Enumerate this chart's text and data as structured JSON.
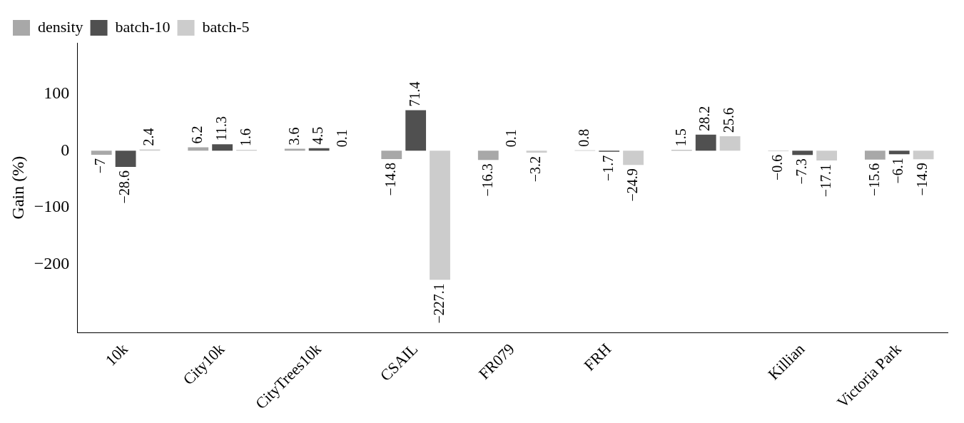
{
  "chart_data": {
    "type": "bar",
    "ylabel": "Gain (%)",
    "categories": [
      "10k",
      "City10k",
      "CityTrees10k",
      "CSAIL",
      "FR079",
      "FRH",
      null,
      "Killian",
      "Victoria Park"
    ],
    "series": [
      {
        "name": "density",
        "color": "#a8a8a8",
        "values": [
          -7,
          6.2,
          3.6,
          -14.8,
          -16.3,
          0.8,
          1.5,
          -0.6,
          -15.6
        ]
      },
      {
        "name": "batch-10",
        "color": "#505050",
        "values": [
          -28.6,
          11.3,
          4.5,
          71.4,
          0.1,
          -1.7,
          28.2,
          -7.3,
          -6.1
        ]
      },
      {
        "name": "batch-5",
        "color": "#cccccc",
        "values": [
          2.4,
          1.6,
          0.1,
          -227.1,
          -3.2,
          -24.9,
          25.6,
          -17.1,
          -14.9
        ]
      }
    ],
    "ylim": [
      -320,
      190
    ],
    "yticks": [
      -200,
      -100,
      0,
      100
    ],
    "grid": false,
    "legend": "top left",
    "data_labels": true
  }
}
